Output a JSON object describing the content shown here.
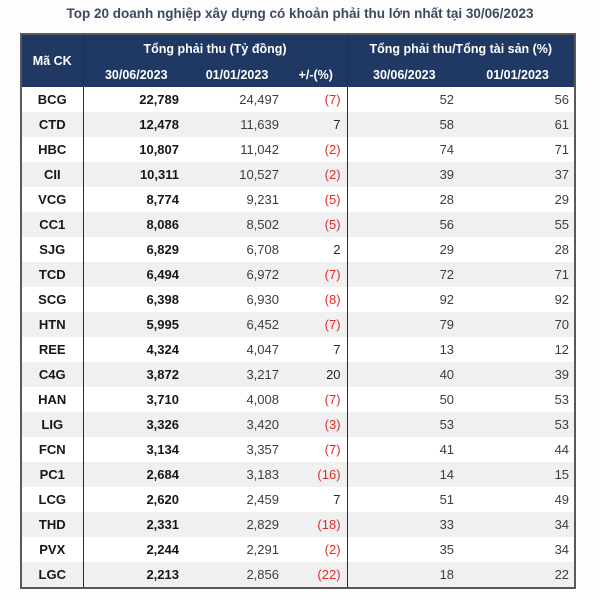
{
  "title": "Top 20 doanh nghiệp xây dựng có khoản phải thu lớn nhất tại 30/06/2023",
  "colors": {
    "header_bg": "#1f3864",
    "header_text": "#ffffff",
    "negative_value": "#e12b26",
    "row_stripe": "#f0f0f0",
    "title_text": "#3b4a63"
  },
  "table": {
    "ticker_header": "Mã CK",
    "group1": {
      "label": "Tổng phải thu (Tỷ đồng)",
      "sub": [
        "30/06/2023",
        "01/01/2023",
        "+/-(%)"
      ]
    },
    "group2": {
      "label": "Tổng phải thu/Tổng tài sản (%)",
      "sub": [
        "30/06/2023",
        "01/01/2023"
      ]
    },
    "rows": [
      {
        "ticker": "BCG",
        "v1": "22,789",
        "v2": "24,497",
        "chg": "(7)",
        "r1": "52",
        "r2": "56"
      },
      {
        "ticker": "CTD",
        "v1": "12,478",
        "v2": "11,639",
        "chg": "7",
        "r1": "58",
        "r2": "61"
      },
      {
        "ticker": "HBC",
        "v1": "10,807",
        "v2": "11,042",
        "chg": "(2)",
        "r1": "74",
        "r2": "71"
      },
      {
        "ticker": "CII",
        "v1": "10,311",
        "v2": "10,527",
        "chg": "(2)",
        "r1": "39",
        "r2": "37"
      },
      {
        "ticker": "VCG",
        "v1": "8,774",
        "v2": "9,231",
        "chg": "(5)",
        "r1": "28",
        "r2": "29"
      },
      {
        "ticker": "CC1",
        "v1": "8,086",
        "v2": "8,502",
        "chg": "(5)",
        "r1": "56",
        "r2": "55"
      },
      {
        "ticker": "SJG",
        "v1": "6,829",
        "v2": "6,708",
        "chg": "2",
        "r1": "29",
        "r2": "28"
      },
      {
        "ticker": "TCD",
        "v1": "6,494",
        "v2": "6,972",
        "chg": "(7)",
        "r1": "72",
        "r2": "71"
      },
      {
        "ticker": "SCG",
        "v1": "6,398",
        "v2": "6,930",
        "chg": "(8)",
        "r1": "92",
        "r2": "92"
      },
      {
        "ticker": "HTN",
        "v1": "5,995",
        "v2": "6,452",
        "chg": "(7)",
        "r1": "79",
        "r2": "70"
      },
      {
        "ticker": "REE",
        "v1": "4,324",
        "v2": "4,047",
        "chg": "7",
        "r1": "13",
        "r2": "12"
      },
      {
        "ticker": "C4G",
        "v1": "3,872",
        "v2": "3,217",
        "chg": "20",
        "r1": "40",
        "r2": "39"
      },
      {
        "ticker": "HAN",
        "v1": "3,710",
        "v2": "4,008",
        "chg": "(7)",
        "r1": "50",
        "r2": "53"
      },
      {
        "ticker": "LIG",
        "v1": "3,326",
        "v2": "3,420",
        "chg": "(3)",
        "r1": "53",
        "r2": "53"
      },
      {
        "ticker": "FCN",
        "v1": "3,134",
        "v2": "3,357",
        "chg": "(7)",
        "r1": "41",
        "r2": "44"
      },
      {
        "ticker": "PC1",
        "v1": "2,684",
        "v2": "3,183",
        "chg": "(16)",
        "r1": "14",
        "r2": "15"
      },
      {
        "ticker": "LCG",
        "v1": "2,620",
        "v2": "2,459",
        "chg": "7",
        "r1": "51",
        "r2": "49"
      },
      {
        "ticker": "THD",
        "v1": "2,331",
        "v2": "2,829",
        "chg": "(18)",
        "r1": "33",
        "r2": "34"
      },
      {
        "ticker": "PVX",
        "v1": "2,244",
        "v2": "2,291",
        "chg": "(2)",
        "r1": "35",
        "r2": "34"
      },
      {
        "ticker": "LGC",
        "v1": "2,213",
        "v2": "2,856",
        "chg": "(22)",
        "r1": "18",
        "r2": "22"
      }
    ]
  }
}
